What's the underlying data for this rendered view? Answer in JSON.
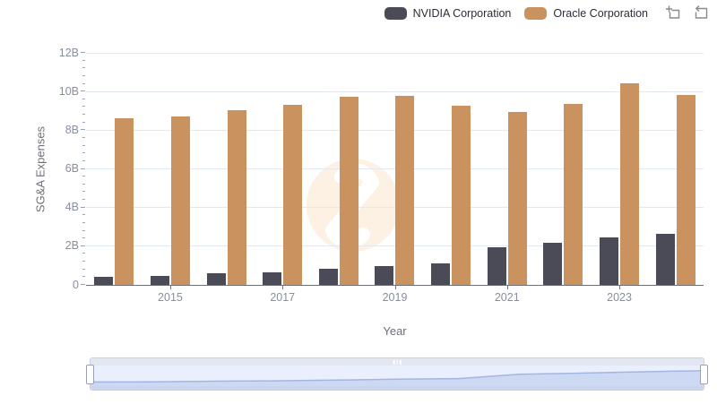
{
  "legend": {
    "items": [
      {
        "label": "NVIDIA Corporation",
        "color": "#4a4b57"
      },
      {
        "label": "Oracle Corporation",
        "color": "#c9925f"
      }
    ],
    "tools": [
      {
        "name": "box-zoom",
        "icon": "zoom-select-icon"
      },
      {
        "name": "restore",
        "icon": "restore-icon"
      }
    ]
  },
  "chart_data": {
    "type": "bar",
    "title": "",
    "xlabel": "Year",
    "ylabel": "SG&A Expenses",
    "unit": "billions USD (B)",
    "ylim": [
      0,
      12
    ],
    "grid": true,
    "legend_position": "top-right",
    "categories": [
      "2014",
      "2015",
      "2016",
      "2017",
      "2018",
      "2019",
      "2020",
      "2021",
      "2022",
      "2023",
      "2024"
    ],
    "series": [
      {
        "name": "NVIDIA Corporation",
        "color": "#4a4b57",
        "values_billions": [
          0.44,
          0.48,
          0.6,
          0.66,
          0.82,
          0.99,
          1.09,
          1.94,
          2.17,
          2.44,
          2.65
        ]
      },
      {
        "name": "Oracle Corporation",
        "color": "#c9925f",
        "values_billions": [
          8.6,
          8.73,
          9.04,
          9.3,
          9.72,
          9.79,
          9.28,
          8.94,
          9.36,
          10.41,
          9.83
        ]
      }
    ],
    "y_tick_labels": [
      "0",
      "2B",
      "4B",
      "6B",
      "8B",
      "10B",
      "12B"
    ],
    "y_minor_ticks_per_major": 4,
    "x_tick_labels_visible": [
      "2015",
      "2017",
      "2019",
      "2021",
      "2023"
    ]
  },
  "watermark": {
    "shape": "circle-z-logo",
    "color": "#fcf1e2"
  },
  "slider": {
    "window": "100%",
    "preview_curve_normalized": [
      0.22,
      0.23,
      0.26,
      0.28,
      0.32,
      0.37,
      0.4,
      0.63,
      0.69,
      0.76,
      0.82
    ],
    "colors": {
      "track": "#e3e7f2",
      "selection_bg": "#e9effc",
      "area_fill": "#cdd9f3",
      "area_line": "#a3b5e2",
      "bottom_bar": "#cbd5ec"
    }
  },
  "palette": {
    "axis_line": "#6e7079",
    "grid_line": "#e2e8f3",
    "tick_label": "#878ea0",
    "axis_name": "#6e7079",
    "legend_text": "#2b2e36"
  }
}
